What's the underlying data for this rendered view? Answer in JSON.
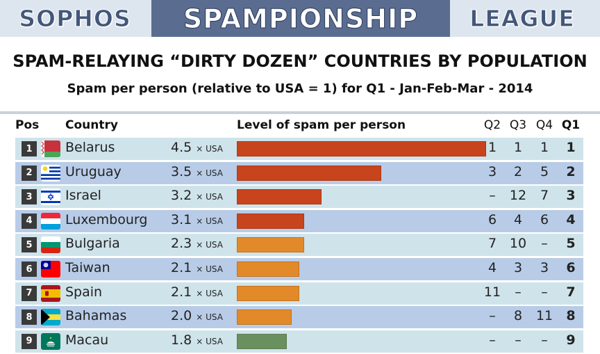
{
  "banner": {
    "left": "SOPHOS",
    "middle": "SPAMPIONSHIP",
    "right": "LEAGUE"
  },
  "title": "SPAM-RELAYING “DIRTY DOZEN” COUNTRIES BY POPULATION",
  "subtitle": "Spam per person (relative to USA = 1) for Q1 - Jan-Feb-Mar - 2014",
  "headers": {
    "pos": "Pos",
    "country": "Country",
    "level": "Level of spam per person",
    "q2": "Q2",
    "q3": "Q3",
    "q4": "Q4",
    "q1": "Q1"
  },
  "unit_label": "× USA",
  "colors": {
    "red": "#c8441c",
    "orange": "#e2892a",
    "green": "#6b9060",
    "row_light": "#cfe3ea",
    "row_dark": "#b8cce8"
  },
  "chart_data": {
    "type": "bar",
    "orientation": "horizontal",
    "categories": [
      "Belarus",
      "Uruguay",
      "Israel",
      "Luxembourg",
      "Bulgaria",
      "Taiwan",
      "Spain",
      "Bahamas",
      "Macau"
    ],
    "values": [
      4.5,
      3.5,
      3.2,
      3.1,
      2.3,
      2.1,
      2.1,
      2.0,
      1.8
    ],
    "value_labels": [
      "4.5",
      "3.5",
      "3.2",
      "3.1",
      "2.3",
      "2.1",
      "2.1",
      "2.0",
      "1.8"
    ],
    "bar_fill": [
      1.0,
      0.58,
      0.34,
      0.27,
      0.27,
      0.25,
      0.25,
      0.22,
      0.2
    ],
    "bar_colors": [
      "red",
      "red",
      "red",
      "red",
      "orange",
      "orange",
      "orange",
      "orange",
      "green"
    ],
    "positions": [
      "1",
      "2",
      "3",
      "4",
      "5",
      "6",
      "7",
      "8",
      "9"
    ],
    "q2": [
      "1",
      "3",
      "–",
      "6",
      "7",
      "4",
      "11",
      "–",
      "–"
    ],
    "q3": [
      "1",
      "2",
      "12",
      "4",
      "10",
      "3",
      "–",
      "8",
      "–"
    ],
    "q4": [
      "1",
      "5",
      "7",
      "6",
      "–",
      "3",
      "–",
      "11",
      "–"
    ],
    "q1": [
      "1",
      "2",
      "3",
      "4",
      "5",
      "6",
      "7",
      "8",
      "9"
    ],
    "flags": [
      "belarus-flag",
      "uruguay-flag",
      "israel-flag",
      "luxembourg-flag",
      "bulgaria-flag",
      "taiwan-flag",
      "spain-flag",
      "bahamas-flag",
      "macau-flag"
    ]
  }
}
